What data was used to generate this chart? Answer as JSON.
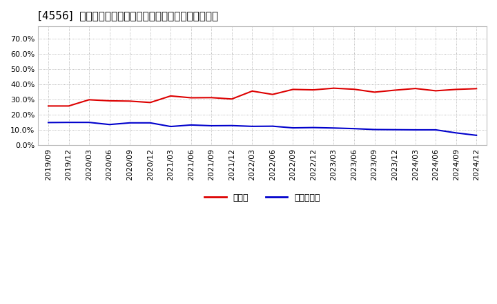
{
  "title": "[4556]  現顔金、有利子負債の総資産に対する比率の推移",
  "x_labels": [
    "2019/09",
    "2019/12",
    "2020/03",
    "2020/06",
    "2020/09",
    "2020/12",
    "2021/03",
    "2021/06",
    "2021/09",
    "2021/12",
    "2022/03",
    "2022/06",
    "2022/09",
    "2022/12",
    "2023/03",
    "2023/06",
    "2023/09",
    "2023/12",
    "2024/03",
    "2024/06",
    "2024/09",
    "2024/12"
  ],
  "cash_values": [
    0.256,
    0.256,
    0.297,
    0.29,
    0.288,
    0.279,
    0.322,
    0.31,
    0.311,
    0.302,
    0.354,
    0.332,
    0.365,
    0.362,
    0.373,
    0.366,
    0.347,
    0.36,
    0.371,
    0.356,
    0.365,
    0.37
  ],
  "debt_values": [
    0.147,
    0.148,
    0.148,
    0.134,
    0.145,
    0.145,
    0.121,
    0.131,
    0.126,
    0.127,
    0.122,
    0.123,
    0.112,
    0.114,
    0.111,
    0.107,
    0.101,
    0.1,
    0.099,
    0.099,
    0.079,
    0.063
  ],
  "cash_color": "#dd0000",
  "debt_color": "#0000cc",
  "background_color": "#ffffff",
  "plot_bg_color": "#ffffff",
  "grid_color": "#999999",
  "legend_cash": "現顔金",
  "legend_debt": "有利子負債",
  "yticks": [
    0.0,
    0.1,
    0.2,
    0.3,
    0.4,
    0.5,
    0.6,
    0.7
  ],
  "ylim": [
    0.0,
    0.78
  ],
  "title_fontsize": 11,
  "tick_fontsize": 8,
  "legend_fontsize": 9,
  "line_width": 1.5
}
